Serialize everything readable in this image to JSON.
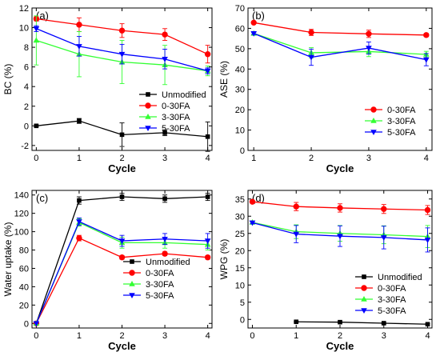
{
  "colors": {
    "black": "#000000",
    "red": "#ff0000",
    "green": "#33ff33",
    "blue": "#0000ff"
  },
  "chart_data": [
    {
      "type": "line",
      "panel_label": "(a)",
      "xlabel": "Cycle",
      "ylabel": "BC (%)",
      "x": [
        0,
        1,
        2,
        3,
        4
      ],
      "xlim": [
        -0.1,
        4.1
      ],
      "ylim": [
        -2.5,
        12
      ],
      "xticks": [
        "0",
        "1",
        "2",
        "3",
        "4"
      ],
      "yticks": [
        "-2",
        "0",
        "2",
        "4",
        "6",
        "8",
        "10",
        "12"
      ],
      "legend_position": "bottom-right",
      "series": [
        {
          "name": "Unmodified",
          "color": "#000000",
          "marker": "square",
          "values": [
            0.0,
            0.5,
            -0.9,
            -0.7,
            -1.1
          ],
          "errors": [
            0.1,
            0.25,
            1.2,
            0.3,
            1.5
          ]
        },
        {
          "name": "0-30FA",
          "color": "#ff0000",
          "marker": "circle",
          "values": [
            10.9,
            10.3,
            9.7,
            9.3,
            7.3
          ],
          "errors": [
            0.2,
            0.7,
            0.7,
            0.6,
            0.9
          ]
        },
        {
          "name": "3-30FA",
          "color": "#33ff33",
          "marker": "triangle-up",
          "values": [
            8.7,
            7.3,
            6.5,
            6.2,
            5.6
          ],
          "errors": [
            2.5,
            2.3,
            2.2,
            2.0,
            0.5
          ]
        },
        {
          "name": "5-30FA",
          "color": "#0000ff",
          "marker": "triangle-down",
          "values": [
            9.9,
            8.1,
            7.3,
            6.8,
            5.6
          ],
          "errors": [
            0.3,
            1.0,
            1.0,
            1.0,
            0.3
          ]
        }
      ]
    },
    {
      "type": "line",
      "panel_label": "(b)",
      "xlabel": "Cycle",
      "ylabel": "ASE (%)",
      "x": [
        1,
        2,
        3,
        4
      ],
      "xlim": [
        0.9,
        4.1
      ],
      "ylim": [
        0,
        70
      ],
      "xticks": [
        "1",
        "2",
        "3",
        "4"
      ],
      "yticks": [
        "0",
        "10",
        "20",
        "30",
        "40",
        "50",
        "60",
        "70"
      ],
      "legend_position": "bottom-right",
      "series": [
        {
          "name": "0-30FA",
          "color": "#ff0000",
          "marker": "circle",
          "values": [
            62.8,
            58.0,
            57.3,
            56.7
          ],
          "errors": [
            0.5,
            1.5,
            1.8,
            0.8
          ]
        },
        {
          "name": "3-30FA",
          "color": "#33ff33",
          "marker": "triangle-up",
          "values": [
            57.5,
            48.0,
            48.6,
            47.2
          ],
          "errors": [
            0.5,
            2.5,
            2.5,
            1.5
          ]
        },
        {
          "name": "5-30FA",
          "color": "#0000ff",
          "marker": "triangle-down",
          "values": [
            57.5,
            45.8,
            50.3,
            44.6
          ],
          "errors": [
            0.5,
            4.0,
            3.0,
            3.0
          ]
        }
      ]
    },
    {
      "type": "line",
      "panel_label": "(c)",
      "xlabel": "Cycle",
      "ylabel": "Water uptake (%)",
      "x": [
        0,
        1,
        2,
        3,
        4
      ],
      "xlim": [
        -0.1,
        4.1
      ],
      "ylim": [
        -5,
        145
      ],
      "xticks": [
        "0",
        "1",
        "2",
        "3",
        "4"
      ],
      "yticks": [
        "0",
        "20",
        "40",
        "60",
        "80",
        "100",
        "120",
        "140"
      ],
      "legend_position": "center-right",
      "series": [
        {
          "name": "Unmodified",
          "color": "#000000",
          "marker": "square",
          "values": [
            0,
            134,
            138,
            136,
            138
          ],
          "errors": [
            0,
            4,
            4,
            4,
            4
          ]
        },
        {
          "name": "0-30FA",
          "color": "#ff0000",
          "marker": "circle",
          "values": [
            0,
            93,
            72,
            76,
            72
          ],
          "errors": [
            0,
            3,
            2,
            2,
            2
          ]
        },
        {
          "name": "3-30FA",
          "color": "#33ff33",
          "marker": "triangle-up",
          "values": [
            0,
            110,
            88,
            88,
            86
          ],
          "errors": [
            0,
            4,
            6,
            6,
            6
          ]
        },
        {
          "name": "5-30FA",
          "color": "#0000ff",
          "marker": "triangle-down",
          "values": [
            0,
            111,
            90,
            92,
            90
          ],
          "errors": [
            0,
            4,
            6,
            6,
            8
          ]
        }
      ]
    },
    {
      "type": "line",
      "panel_label": "(d)",
      "xlabel": "Cycle",
      "ylabel": "WPG (%)",
      "x": [
        0,
        1,
        2,
        3,
        4
      ],
      "xlim": [
        -0.1,
        4.1
      ],
      "ylim": [
        -2.5,
        37.5
      ],
      "xticks": [
        "0",
        "1",
        "2",
        "3",
        "4"
      ],
      "yticks": [
        "0",
        "5",
        "10",
        "15",
        "20",
        "25",
        "30",
        "35"
      ],
      "legend_position": "bottom-right",
      "series": [
        {
          "name": "Unmodified",
          "color": "#000000",
          "marker": "square",
          "values": [
            null,
            -0.7,
            -0.8,
            -1.1,
            -1.4
          ],
          "errors": [
            0,
            0.2,
            0.2,
            0.2,
            0.2
          ]
        },
        {
          "name": "0-30FA",
          "color": "#ff0000",
          "marker": "circle",
          "values": [
            34.2,
            32.8,
            32.4,
            32.1,
            31.8
          ],
          "errors": [
            0.3,
            1.2,
            1.2,
            1.3,
            1.3
          ]
        },
        {
          "name": "3-30FA",
          "color": "#33ff33",
          "marker": "triangle-up",
          "values": [
            28.2,
            25.5,
            25.0,
            24.6,
            24.1
          ],
          "errors": [
            0.3,
            2.0,
            2.3,
            2.6,
            3.2
          ]
        },
        {
          "name": "5-30FA",
          "color": "#0000ff",
          "marker": "triangle-down",
          "values": [
            28.1,
            24.8,
            24.2,
            23.8,
            23.1
          ],
          "errors": [
            0.3,
            2.5,
            3.0,
            3.3,
            3.5
          ]
        }
      ]
    }
  ]
}
